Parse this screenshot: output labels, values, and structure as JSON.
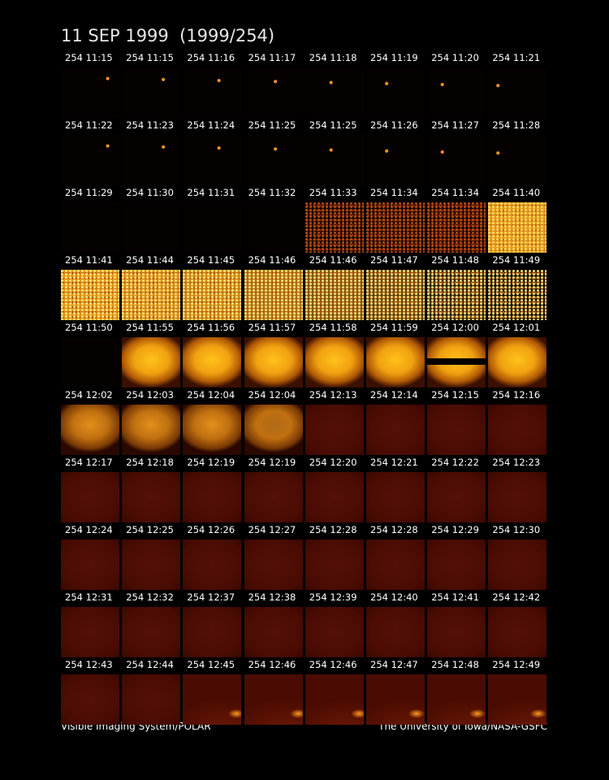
{
  "title": "11 SEP 1999  (1999/254)",
  "rows": [
    [
      "254 11:15",
      "254 11:15",
      "254 11:16",
      "254 11:17",
      "254 11:18",
      "254 11:19",
      "254 11:20",
      "254 11:21"
    ],
    [
      "254 11:22",
      "254 11:23",
      "254 11:24",
      "254 11:25",
      "254 11:25",
      "254 11:26",
      "254 11:27",
      "254 11:28"
    ],
    [
      "254 11:29",
      "254 11:30",
      "254 11:31",
      "254 11:32",
      "254 11:33",
      "254 11:34",
      "254 11:34",
      "254 11:40"
    ],
    [
      "254 11:41",
      "254 11:44",
      "254 11:45",
      "254 11:46",
      "254 11:46",
      "254 11:47",
      "254 11:48",
      "254 11:49"
    ],
    [
      "254 11:50",
      "254 11:55",
      "254 11:56",
      "254 11:57",
      "254 11:58",
      "254 11:59",
      "254 12:00",
      "254 12:01"
    ],
    [
      "254 12:02",
      "254 12:03",
      "254 12:04",
      "254 12:04",
      "254 12:13",
      "254 12:14",
      "254 12:15",
      "254 12:16"
    ],
    [
      "254 12:17",
      "254 12:18",
      "254 12:19",
      "254 12:19",
      "254 12:20",
      "254 12:21",
      "254 12:22",
      "254 12:23"
    ],
    [
      "254 12:24",
      "254 12:25",
      "254 12:26",
      "254 12:27",
      "254 12:28",
      "254 12:28",
      "254 12:29",
      "254 12:30"
    ],
    [
      "254 12:31",
      "254 12:32",
      "254 12:37",
      "254 12:38",
      "254 12:39",
      "254 12:40",
      "254 12:41",
      "254 12:42"
    ],
    [
      "254 12:43",
      "254 12:44",
      "254 12:45",
      "254 12:46",
      "254 12:46",
      "254 12:47",
      "254 12:48",
      "254 12:49"
    ]
  ],
  "footer": {
    "left": "Visible Imaging System/POLAR",
    "right": "The University of Iowa/NASA-GSFC"
  }
}
